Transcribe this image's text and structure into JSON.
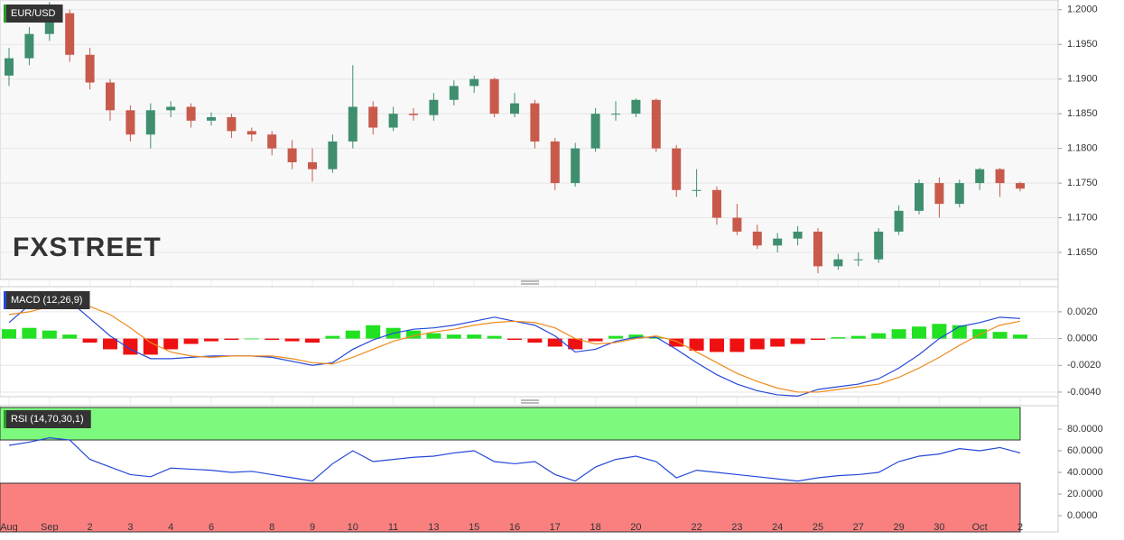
{
  "chart_data": [
    {
      "type": "candlestick",
      "title": "EUR/USD",
      "watermark": "FXSTREET",
      "watermark_color": "#b9b3aa",
      "up_color": "#3f8f6f",
      "down_color": "#c85a4c",
      "open": [
        1.1905,
        1.193,
        1.1965,
        1.1995,
        1.1935,
        1.1895,
        1.1855,
        1.182,
        1.1855,
        1.186,
        1.184,
        1.1845,
        1.1825,
        1.182,
        1.18,
        1.178,
        1.177,
        1.181,
        1.186,
        1.183,
        1.185,
        1.1848,
        1.187,
        1.189,
        1.19,
        1.185,
        1.1865,
        1.181,
        1.175,
        1.18,
        1.185,
        1.185,
        1.187,
        1.18,
        1.174,
        1.174,
        1.17,
        1.168,
        1.166,
        1.167,
        1.168,
        1.163,
        1.164,
        1.164,
        1.168,
        1.171,
        1.175,
        1.172,
        1.175,
        1.177,
        1.175
      ],
      "high": [
        1.1945,
        1.1975,
        1.2011,
        1.2,
        1.1945,
        1.19,
        1.1862,
        1.1865,
        1.1868,
        1.1865,
        1.1852,
        1.185,
        1.183,
        1.1825,
        1.1812,
        1.18,
        1.182,
        1.192,
        1.1868,
        1.186,
        1.1858,
        1.188,
        1.1898,
        1.1905,
        1.1902,
        1.188,
        1.187,
        1.1815,
        1.1808,
        1.1858,
        1.1868,
        1.1872,
        1.1872,
        1.1805,
        1.177,
        1.1745,
        1.172,
        1.169,
        1.1678,
        1.1688,
        1.1685,
        1.1648,
        1.165,
        1.1685,
        1.1718,
        1.1755,
        1.1758,
        1.1755,
        1.1772,
        1.1772,
        1.1752
      ],
      "low": [
        1.189,
        1.192,
        1.1955,
        1.1925,
        1.1885,
        1.184,
        1.181,
        1.18,
        1.1845,
        1.183,
        1.1833,
        1.1815,
        1.181,
        1.179,
        1.177,
        1.1752,
        1.1765,
        1.18,
        1.182,
        1.1825,
        1.184,
        1.184,
        1.1862,
        1.188,
        1.1845,
        1.1845,
        1.18,
        1.174,
        1.1745,
        1.1795,
        1.184,
        1.1845,
        1.1795,
        1.173,
        1.173,
        1.169,
        1.1675,
        1.1655,
        1.165,
        1.166,
        1.162,
        1.1625,
        1.163,
        1.1635,
        1.1675,
        1.1705,
        1.17,
        1.1715,
        1.174,
        1.173,
        1.1738
      ],
      "close": [
        1.193,
        1.1965,
        1.1995,
        1.1935,
        1.1895,
        1.1855,
        1.182,
        1.1855,
        1.186,
        1.184,
        1.1845,
        1.1825,
        1.182,
        1.18,
        1.178,
        1.177,
        1.181,
        1.186,
        1.183,
        1.185,
        1.1848,
        1.187,
        1.189,
        1.19,
        1.185,
        1.1865,
        1.181,
        1.175,
        1.18,
        1.185,
        1.185,
        1.187,
        1.18,
        1.174,
        1.174,
        1.17,
        1.168,
        1.166,
        1.167,
        1.168,
        1.163,
        1.164,
        1.164,
        1.168,
        1.171,
        1.175,
        1.172,
        1.175,
        1.177,
        1.175,
        1.1742
      ],
      "ylim": [
        1.1611,
        1.2014
      ],
      "yticks": [
        {
          "value": 1.165,
          "label": "1.1650"
        },
        {
          "value": 1.17,
          "label": "1.1700"
        },
        {
          "value": 1.175,
          "label": "1.1750"
        },
        {
          "value": 1.18,
          "label": "1.1800"
        },
        {
          "value": 1.185,
          "label": "1.1850"
        },
        {
          "value": 1.19,
          "label": "1.1900"
        },
        {
          "value": 1.195,
          "label": "1.1950"
        },
        {
          "value": 1.2,
          "label": "1.2000"
        }
      ],
      "grid": true
    },
    {
      "type": "macd",
      "title": "MACD (12,26,9)",
      "series": [
        {
          "color": "#2448d8",
          "values": [
            0.0012,
            0.0025,
            0.0033,
            0.0028,
            0.0015,
            0.0002,
            -0.0008,
            -0.0015,
            -0.0015,
            -0.0014,
            -0.0013,
            -0.0013,
            -0.0013,
            -0.0014,
            -0.0017,
            -0.002,
            -0.0018,
            -0.0008,
            -0.0001,
            0.0004,
            0.0007,
            0.0008,
            0.001,
            0.0013,
            0.0016,
            0.0013,
            0.001,
            0.0002,
            -0.001,
            -0.0008,
            -0.0002,
            0.0001,
            0.0001,
            -0.0008,
            -0.0018,
            -0.0027,
            -0.0034,
            -0.0039,
            -0.0042,
            -0.0043,
            -0.0038,
            -0.0036,
            -0.0034,
            -0.003,
            -0.0022,
            -0.0012,
            0.0,
            0.0009,
            0.0012,
            0.0016,
            0.0015
          ]
        },
        {
          "color": "#f08a1c",
          "values": [
            0.0018,
            0.002,
            0.0024,
            0.0026,
            0.0024,
            0.0018,
            0.0008,
            -0.0003,
            -0.001,
            -0.0013,
            -0.0014,
            -0.0013,
            -0.0013,
            -0.0013,
            -0.0015,
            -0.0018,
            -0.0019,
            -0.0014,
            -0.0008,
            -0.0002,
            0.0002,
            0.0005,
            0.0007,
            0.001,
            0.0012,
            0.0013,
            0.0012,
            0.0008,
            0.0,
            -0.0004,
            -0.0003,
            0.0,
            0.0002,
            -0.0002,
            -0.001,
            -0.0018,
            -0.0026,
            -0.0032,
            -0.0037,
            -0.004,
            -0.004,
            -0.0038,
            -0.0036,
            -0.0034,
            -0.0029,
            -0.0022,
            -0.0014,
            -0.0005,
            0.0003,
            0.001,
            0.0013
          ]
        }
      ],
      "histogram": {
        "positive_color": "#22e022",
        "negative_color": "#ee1111",
        "values": [
          0.0007,
          0.0008,
          0.0006,
          0.0003,
          -0.0003,
          -0.0008,
          -0.0012,
          -0.0012,
          -0.0008,
          -0.0004,
          -0.0002,
          -0.0001,
          0.0,
          -0.0001,
          -0.0002,
          -0.0003,
          0.0002,
          0.0006,
          0.001,
          0.0008,
          0.0006,
          0.0004,
          0.0003,
          0.0003,
          0.0002,
          -0.0001,
          -0.0003,
          -0.0006,
          -0.0008,
          -0.0002,
          0.0002,
          0.0003,
          0.0001,
          -0.0006,
          -0.0009,
          -0.001,
          -0.001,
          -0.0008,
          -0.0006,
          -0.0004,
          -0.0001,
          0.0001,
          0.0002,
          0.0004,
          0.0007,
          0.0009,
          0.0011,
          0.001,
          0.0007,
          0.0005,
          0.0003
        ]
      },
      "ylim": [
        -0.00434,
        0.00388
      ],
      "yticks": [
        {
          "value": -0.004,
          "label": "-0.0040"
        },
        {
          "value": -0.002,
          "label": "-0.0020"
        },
        {
          "value": 0,
          "label": "0.0000"
        },
        {
          "value": 0.002,
          "label": "0.0020"
        }
      ]
    },
    {
      "type": "rsi",
      "title": "RSI (14,70,30,1)",
      "color": "#2448d8",
      "values": [
        65,
        68,
        72,
        70,
        52,
        45,
        38,
        36,
        44,
        43,
        42,
        40,
        41,
        38,
        35,
        32,
        48,
        60,
        50,
        52,
        54,
        55,
        58,
        60,
        50,
        48,
        50,
        38,
        32,
        45,
        52,
        55,
        50,
        35,
        42,
        40,
        38,
        36,
        34,
        32,
        35,
        37,
        38,
        40,
        50,
        55,
        57,
        62,
        60,
        63,
        58
      ],
      "overbought_zone": [
        70,
        100
      ],
      "overbought_color": "#7dfa7d",
      "oversold_zone": [
        -15,
        30
      ],
      "oversold_color": "#fa8080",
      "categories": [
        "Aug",
        null,
        "Sep",
        null,
        "2",
        null,
        "3",
        null,
        "4",
        null,
        "6",
        null,
        null,
        "8",
        null,
        "9",
        null,
        "10",
        null,
        "11",
        null,
        "13",
        null,
        "15",
        null,
        "16",
        null,
        "17",
        null,
        "18",
        null,
        "20",
        null,
        null,
        "22",
        null,
        "23",
        null,
        "24",
        null,
        "25",
        null,
        "27",
        null,
        "29",
        null,
        "30",
        null,
        "Oct",
        null,
        "2"
      ],
      "ylim": [
        -15,
        101.7
      ],
      "yticks": [
        {
          "value": 0,
          "label": "0.0000"
        },
        {
          "value": 20,
          "label": "20.0000"
        },
        {
          "value": 40,
          "label": "40.0000"
        },
        {
          "value": 60,
          "label": "60.0000"
        },
        {
          "value": 80,
          "label": "80.0000"
        }
      ]
    }
  ]
}
